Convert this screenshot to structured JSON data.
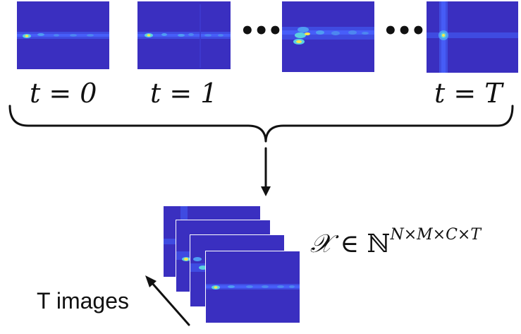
{
  "frames": [
    {
      "label": "t = 0"
    },
    {
      "label": "t = 1"
    },
    {
      "label": ""
    },
    {
      "label": "t = T"
    }
  ],
  "ellipsis": "•••",
  "tensor": {
    "symbol": "𝒳",
    "relation": "∈",
    "set": "ℕ",
    "dims": "N×M×C×T"
  },
  "stack_caption": "T images",
  "colors": {
    "frame_background": "#3a2fc0",
    "frame_band": "#4a63ff",
    "hotspot": "#ffe84a",
    "ink": "#111111"
  }
}
